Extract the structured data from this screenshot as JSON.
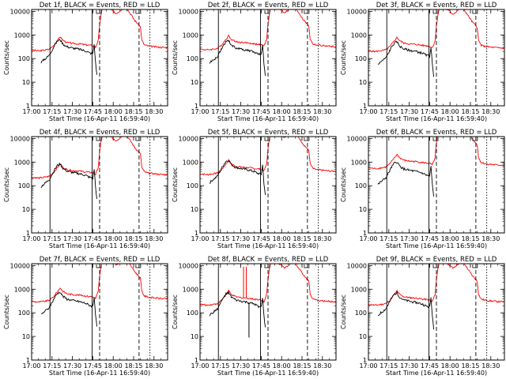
{
  "figure": {
    "colors": {
      "events": "#000000",
      "lld": "#ff0000",
      "frame": "#000000"
    },
    "panels": [
      {
        "id": "det1",
        "title": "Det 1f, BLACK = Events, RED = LLD"
      },
      {
        "id": "det2",
        "title": "Det 2f, BLACK = Events, RED = LLD"
      },
      {
        "id": "det3",
        "title": "Det 3f, BLACK = Events, RED = LLD"
      },
      {
        "id": "det4",
        "title": "Det 4f, BLACK = Events, RED = LLD"
      },
      {
        "id": "det5",
        "title": "Det 5f, BLACK = Events, RED = LLD"
      },
      {
        "id": "det6",
        "title": "Det 6f, BLACK = Events, RED = LLD"
      },
      {
        "id": "det7",
        "title": "Det 7f, BLACK = Events, RED = LLD"
      },
      {
        "id": "det8",
        "title": "Det 8f, BLACK = Events, RED = LLD"
      },
      {
        "id": "det9",
        "title": "Det 9f, BLACK = Events, RED = LLD"
      }
    ]
  },
  "chart_data": {
    "type": "line",
    "layout": "3x3 grid",
    "xlabel": "Start Time (16-Apr-11 16:59:40)",
    "ylabel": "Counts/sec",
    "x_unit": "minutes after 17:00",
    "xlim": [
      0,
      100
    ],
    "xticks": [
      0,
      15,
      30,
      45,
      60,
      75,
      90
    ],
    "xtick_labels": [
      "17:00",
      "17:15",
      "17:30",
      "17:45",
      "18:00",
      "18:15",
      "18:30"
    ],
    "yscale": "log",
    "ylim": [
      1,
      12000
    ],
    "yticks": [
      1,
      10,
      100,
      1000,
      10000
    ],
    "ytick_labels": [
      "1",
      "10",
      "100",
      "1000",
      "10000"
    ],
    "vertical_markers": [
      {
        "x": 13.5,
        "style": "solid"
      },
      {
        "x": 44.5,
        "style": "solid"
      },
      {
        "x": 50,
        "style": "dashed"
      },
      {
        "x": 79,
        "style": "dashed"
      },
      {
        "x": 87,
        "style": "dotted"
      }
    ],
    "profile": {
      "lld": [
        [
          0,
          230
        ],
        [
          5,
          210
        ],
        [
          10,
          230
        ],
        [
          13,
          250
        ],
        [
          16,
          350
        ],
        [
          18,
          500
        ],
        [
          20,
          700
        ],
        [
          21,
          850
        ],
        [
          23,
          600
        ],
        [
          26,
          480
        ],
        [
          30,
          440
        ],
        [
          35,
          420
        ],
        [
          40,
          380
        ],
        [
          44,
          360
        ],
        [
          46,
          330
        ],
        [
          47,
          300
        ],
        [
          49,
          600
        ],
        [
          50,
          2500
        ],
        [
          51,
          7000
        ],
        [
          52,
          13000
        ],
        [
          54,
          17000
        ],
        [
          57,
          14000
        ],
        [
          60,
          10000
        ],
        [
          62,
          8000
        ],
        [
          64,
          9500
        ],
        [
          66,
          12000
        ],
        [
          68,
          14000
        ],
        [
          70,
          13000
        ],
        [
          72,
          9000
        ],
        [
          74,
          6000
        ],
        [
          76,
          4000
        ],
        [
          78,
          3000
        ],
        [
          80,
          2200
        ],
        [
          81,
          600
        ],
        [
          83,
          380
        ],
        [
          86,
          340
        ],
        [
          90,
          320
        ],
        [
          95,
          300
        ],
        [
          100,
          290
        ]
      ],
      "events": [
        [
          7,
          70
        ],
        [
          9,
          90
        ],
        [
          11,
          110
        ],
        [
          13,
          140
        ],
        [
          15,
          230
        ],
        [
          17,
          380
        ],
        [
          19,
          560
        ],
        [
          21,
          640
        ],
        [
          23,
          420
        ],
        [
          26,
          320
        ],
        [
          30,
          280
        ],
        [
          35,
          250
        ],
        [
          40,
          210
        ],
        [
          42,
          180
        ],
        [
          44,
          165
        ],
        [
          45,
          160
        ],
        [
          46,
          400
        ],
        [
          47,
          70
        ],
        [
          48,
          20
        ]
      ]
    },
    "series": [
      {
        "name": "BLACK = Events",
        "panel": "det1",
        "scale": 1.0
      },
      {
        "name": "RED = LLD",
        "panel": "det1",
        "scale": 1.0
      },
      {
        "name": "BLACK = Events",
        "panel": "det2",
        "scale": 0.9
      },
      {
        "name": "RED = LLD",
        "panel": "det2",
        "scale": 1.1
      },
      {
        "name": "BLACK = Events",
        "panel": "det3",
        "scale": 0.8
      },
      {
        "name": "RED = LLD",
        "panel": "det3",
        "scale": 0.95
      },
      {
        "name": "BLACK = Events",
        "panel": "det4",
        "scale": 1.3
      },
      {
        "name": "RED = LLD",
        "panel": "det4",
        "scale": 1.0
      },
      {
        "name": "BLACK = Events",
        "panel": "det5",
        "scale": 1.9
      },
      {
        "name": "RED = LLD",
        "panel": "det5",
        "scale": 1.4
      },
      {
        "name": "BLACK = Events",
        "panel": "det6",
        "scale": 1.6
      },
      {
        "name": "RED = LLD",
        "panel": "det6",
        "scale": 2.5
      },
      {
        "name": "BLACK = Events",
        "panel": "det7",
        "scale": 1.2
      },
      {
        "name": "RED = LLD",
        "panel": "det7",
        "scale": 1.35
      },
      {
        "name": "BLACK = Events",
        "panel": "det8",
        "scale": 1.1
      },
      {
        "name": "RED = LLD",
        "panel": "det8",
        "scale": 1.0
      },
      {
        "name": "BLACK = Events",
        "panel": "det9",
        "scale": 1.1
      },
      {
        "name": "RED = LLD",
        "panel": "det9",
        "scale": 1.0
      }
    ],
    "spikes": [
      {
        "panel": "det8",
        "series": "RED = LLD",
        "x": 32,
        "y": 9000
      },
      {
        "panel": "det8",
        "series": "RED = LLD",
        "x": 34,
        "y": 9000
      },
      {
        "panel": "det8",
        "series": "BLACK = Events",
        "x": 36,
        "y": 9
      }
    ],
    "title": "",
    "grid": false
  }
}
